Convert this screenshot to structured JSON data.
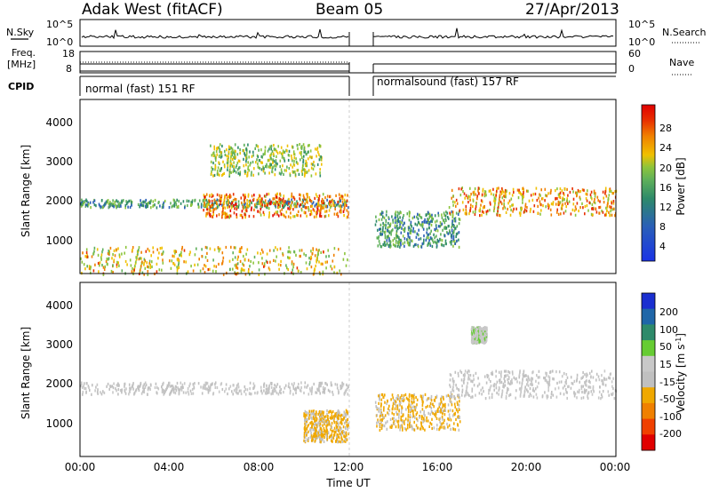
{
  "header": {
    "station": "Adak West (fitACF)",
    "beam": "Beam 05",
    "date": "27/Apr/2013"
  },
  "strips": {
    "nsky_label": "N.Sky",
    "nsky_ticks": [
      "10^5",
      "10^0"
    ],
    "nsearch_label": "N.Search",
    "nsearch_ticks": [
      "10^5",
      "10^0"
    ],
    "freq_label": "Freq.",
    "freq_unit": "[MHz]",
    "freq_ticks": [
      "18",
      "8"
    ],
    "nave_label": "Nave",
    "nave_ticks": [
      "60",
      "0"
    ],
    "cpid_label": "CPID",
    "cpid_segments": [
      "normal (fast) 151 RF",
      "normalsound (fast) 157 RF"
    ]
  },
  "x_ticks": [
    "00:00",
    "04:00",
    "08:00",
    "12:00",
    "16:00",
    "20:00",
    "00:00"
  ],
  "xlabel": "Time UT",
  "colors": {
    "power": [
      "#1a33e6",
      "#2a5fb8",
      "#2e8a6a",
      "#5fb05a",
      "#8cc43c",
      "#f0c000",
      "#f08000",
      "#e83000",
      "#e00000"
    ],
    "velocity": [
      "#e00000",
      "#f04000",
      "#f08000",
      "#f0a800",
      "#c0c0c0",
      "#c8c8c8",
      "#66cc33",
      "#2e8a6a",
      "#1f66a8",
      "#1a2fd0"
    ]
  },
  "chart_data": [
    {
      "type": "heatmap",
      "title": "Power",
      "ylabel": "Slant Range [km]",
      "xlabel": "Time UT",
      "x_range": [
        "00:00",
        "24:00"
      ],
      "ylim": [
        200,
        4600
      ],
      "y_ticks": [
        "1000",
        "2000",
        "3000",
        "4000"
      ],
      "colorbar_label": "Power [dB]",
      "colorbar_ticks": [
        "4",
        "8",
        "12",
        "16",
        "20",
        "24",
        "28"
      ],
      "colorbar_range": [
        0,
        30
      ],
      "data_gap_hours": [
        12.0,
        13.2
      ],
      "echo_bands": [
        {
          "t": [
            0.0,
            12.0
          ],
          "range_km": [
            1900,
            2100
          ],
          "power_db": 10
        },
        {
          "t": [
            5.5,
            12.0
          ],
          "range_km": [
            1650,
            2250
          ],
          "power_db": 22
        },
        {
          "t": [
            5.8,
            10.8
          ],
          "range_km": [
            2700,
            3500
          ],
          "power_db": 14
        },
        {
          "t": [
            0.0,
            12.0
          ],
          "range_km": [
            200,
            900
          ],
          "power_db": 18
        },
        {
          "t": [
            13.2,
            17.0
          ],
          "range_km": [
            900,
            1800
          ],
          "power_db": 10
        },
        {
          "t": [
            16.5,
            24.0
          ],
          "range_km": [
            1700,
            2400
          ],
          "power_db": 20
        }
      ]
    },
    {
      "type": "heatmap",
      "title": "Velocity",
      "ylabel": "Slant Range [km]",
      "xlabel": "Time UT",
      "x_range": [
        "00:00",
        "24:00"
      ],
      "ylim": [
        200,
        4600
      ],
      "y_ticks": [
        "1000",
        "2000",
        "3000",
        "4000"
      ],
      "colorbar_label": "Velocity [m s^-1]",
      "colorbar_ticks": [
        "200",
        "100",
        "50",
        "15",
        "-15",
        "-50",
        "-100",
        "-200"
      ],
      "colorbar_range": [
        -250,
        250
      ],
      "data_gap_hours": [
        12.0,
        13.2
      ],
      "echo_bands": [
        {
          "t": [
            0.0,
            12.0
          ],
          "range_km": [
            1800,
            2100
          ],
          "velocity": 0
        },
        {
          "t": [
            10.0,
            12.0
          ],
          "range_km": [
            600,
            1400
          ],
          "velocity": -60
        },
        {
          "t": [
            13.2,
            17.0
          ],
          "range_km": [
            900,
            1800
          ],
          "velocity": -60
        },
        {
          "t": [
            16.5,
            24.0
          ],
          "range_km": [
            1700,
            2400
          ],
          "velocity": 0
        },
        {
          "t": [
            17.5,
            18.2
          ],
          "range_km": [
            3100,
            3500
          ],
          "velocity": 30
        }
      ]
    }
  ]
}
